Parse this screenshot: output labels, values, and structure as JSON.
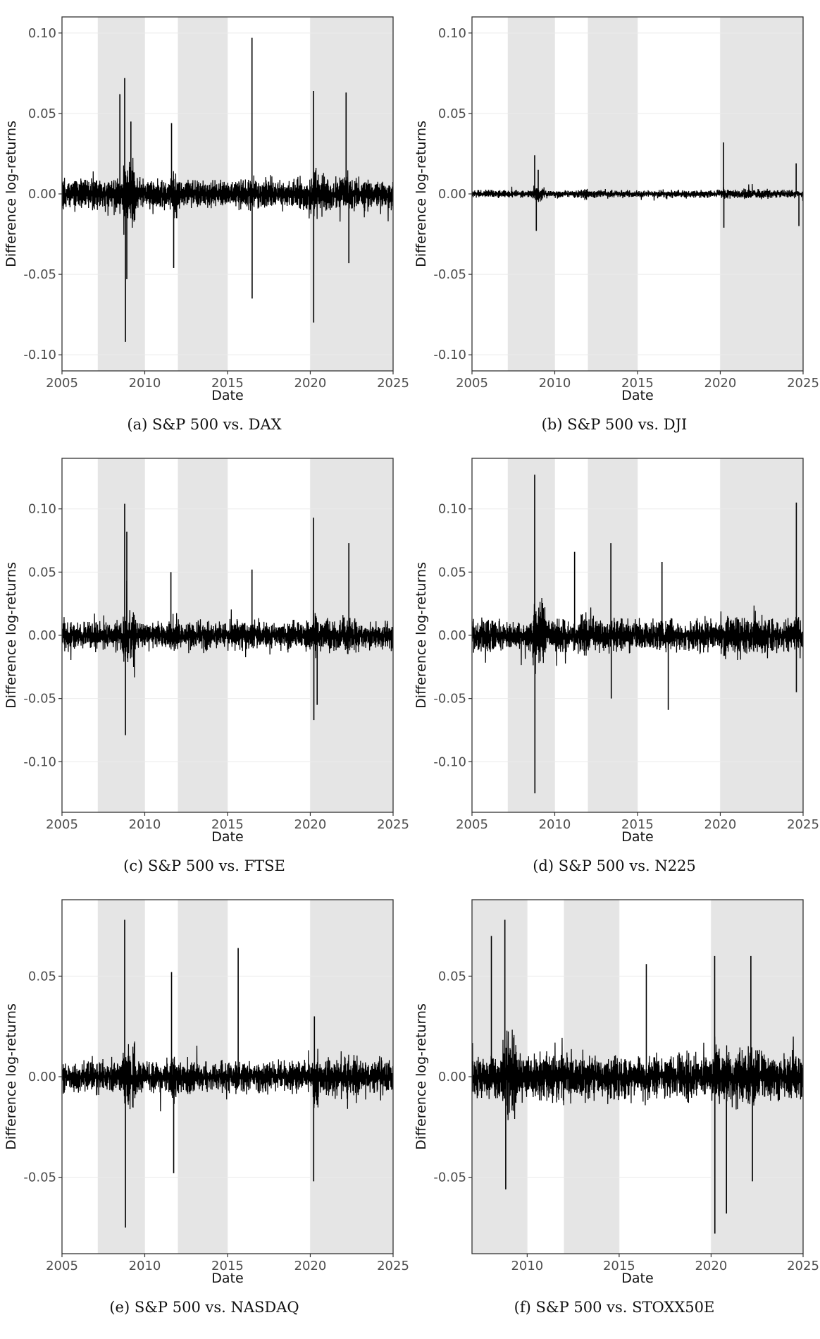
{
  "chart_data": [
    {
      "type": "line",
      "caption": "(a) S&P 500 vs. DAX",
      "xlabel": "Date",
      "ylabel": "Difference log-returns",
      "xlim": [
        "2005-01-01",
        "2025-01-01"
      ],
      "ylim": [
        -0.11,
        0.11
      ],
      "xticks": [
        "2005",
        "2010",
        "2015",
        "2020",
        "2025"
      ],
      "yticks": [
        -0.1,
        -0.05,
        0.0,
        0.05,
        0.1
      ],
      "ytick_labels": [
        "-0.10",
        "-0.05",
        "0.00",
        "0.05",
        "0.10"
      ],
      "grid": true,
      "shaded_periods": [
        [
          "2007-03-01",
          "2010-01-01"
        ],
        [
          "2012-01-01",
          "2015-01-01"
        ],
        [
          "2020-01-01",
          "2025-01-01"
        ]
      ],
      "series_extent": [
        "2005-01-01",
        "2025-01-01"
      ],
      "baseline_amplitude": 0.012,
      "spikes": [
        {
          "date": "2008-07-01",
          "value": 0.062
        },
        {
          "date": "2008-10-15",
          "value": 0.072
        },
        {
          "date": "2008-11-01",
          "value": -0.092
        },
        {
          "date": "2008-12-01",
          "value": -0.053
        },
        {
          "date": "2009-03-01",
          "value": 0.045
        },
        {
          "date": "2011-08-15",
          "value": 0.044
        },
        {
          "date": "2011-10-01",
          "value": -0.046
        },
        {
          "date": "2016-06-24",
          "value": 0.097
        },
        {
          "date": "2016-06-27",
          "value": -0.065
        },
        {
          "date": "2020-03-12",
          "value": 0.064
        },
        {
          "date": "2020-03-16",
          "value": -0.08
        },
        {
          "date": "2022-03-01",
          "value": 0.063
        },
        {
          "date": "2022-05-01",
          "value": -0.043
        }
      ]
    },
    {
      "type": "line",
      "caption": "(b) S&P 500 vs. DJI",
      "xlabel": "Date",
      "ylabel": "Difference log-returns",
      "xlim": [
        "2005-01-01",
        "2025-01-01"
      ],
      "ylim": [
        -0.11,
        0.11
      ],
      "xticks": [
        "2005",
        "2010",
        "2015",
        "2020",
        "2025"
      ],
      "yticks": [
        -0.1,
        -0.05,
        0.0,
        0.05,
        0.1
      ],
      "ytick_labels": [
        "-0.10",
        "-0.05",
        "0.00",
        "0.05",
        "0.10"
      ],
      "grid": true,
      "shaded_periods": [
        [
          "2007-03-01",
          "2010-01-01"
        ],
        [
          "2012-01-01",
          "2015-01-01"
        ],
        [
          "2020-01-01",
          "2025-01-01"
        ]
      ],
      "series_extent": [
        "2005-01-01",
        "2025-01-01"
      ],
      "baseline_amplitude": 0.003,
      "spikes": [
        {
          "date": "2008-10-15",
          "value": 0.024
        },
        {
          "date": "2008-11-20",
          "value": -0.023
        },
        {
          "date": "2009-01-01",
          "value": 0.015
        },
        {
          "date": "2020-03-12",
          "value": 0.032
        },
        {
          "date": "2020-03-20",
          "value": -0.021
        },
        {
          "date": "2024-08-01",
          "value": 0.019
        },
        {
          "date": "2024-10-01",
          "value": -0.02
        }
      ]
    },
    {
      "type": "line",
      "caption": "(c) S&P 500 vs. FTSE",
      "xlabel": "Date",
      "ylabel": "Difference log-returns",
      "xlim": [
        "2005-01-01",
        "2025-01-01"
      ],
      "ylim": [
        -0.14,
        0.14
      ],
      "xticks": [
        "2005",
        "2010",
        "2015",
        "2020",
        "2025"
      ],
      "yticks": [
        -0.1,
        -0.05,
        0.0,
        0.05,
        0.1
      ],
      "ytick_labels": [
        "-0.10",
        "-0.05",
        "0.00",
        "0.05",
        "0.10"
      ],
      "grid": true,
      "shaded_periods": [
        [
          "2007-03-01",
          "2010-01-01"
        ],
        [
          "2012-01-01",
          "2015-01-01"
        ],
        [
          "2020-01-01",
          "2025-01-01"
        ]
      ],
      "series_extent": [
        "2005-01-01",
        "2025-01-01"
      ],
      "baseline_amplitude": 0.014,
      "spikes": [
        {
          "date": "2008-10-15",
          "value": 0.104
        },
        {
          "date": "2008-11-01",
          "value": -0.079
        },
        {
          "date": "2008-12-01",
          "value": 0.082
        },
        {
          "date": "2011-08-01",
          "value": 0.05
        },
        {
          "date": "2016-06-24",
          "value": 0.052
        },
        {
          "date": "2020-03-12",
          "value": 0.093
        },
        {
          "date": "2020-03-20",
          "value": -0.067
        },
        {
          "date": "2020-06-01",
          "value": -0.055
        },
        {
          "date": "2022-05-01",
          "value": 0.073
        }
      ]
    },
    {
      "type": "line",
      "caption": "(d) S&P 500 vs. N225",
      "xlabel": "Date",
      "ylabel": "Difference log-returns",
      "xlim": [
        "2005-01-01",
        "2025-01-01"
      ],
      "ylim": [
        -0.14,
        0.14
      ],
      "xticks": [
        "2005",
        "2010",
        "2015",
        "2020",
        "2025"
      ],
      "yticks": [
        -0.1,
        -0.05,
        0.0,
        0.05,
        0.1
      ],
      "ytick_labels": [
        "-0.10",
        "-0.05",
        "0.00",
        "0.05",
        "0.10"
      ],
      "grid": true,
      "shaded_periods": [
        [
          "2007-03-01",
          "2010-01-01"
        ],
        [
          "2012-01-01",
          "2015-01-01"
        ],
        [
          "2020-01-01",
          "2025-01-01"
        ]
      ],
      "series_extent": [
        "2005-01-01",
        "2025-01-01"
      ],
      "baseline_amplitude": 0.016,
      "spikes": [
        {
          "date": "2008-10-15",
          "value": 0.127
        },
        {
          "date": "2008-10-20",
          "value": -0.125
        },
        {
          "date": "2011-03-15",
          "value": 0.066
        },
        {
          "date": "2013-05-23",
          "value": 0.073
        },
        {
          "date": "2013-06-01",
          "value": -0.05
        },
        {
          "date": "2016-06-24",
          "value": 0.058
        },
        {
          "date": "2016-11-09",
          "value": -0.059
        },
        {
          "date": "2024-08-05",
          "value": 0.105
        },
        {
          "date": "2024-08-06",
          "value": -0.045
        }
      ]
    },
    {
      "type": "line",
      "caption": "(e) S&P 500 vs. NASDAQ",
      "xlabel": "Date",
      "ylabel": "Difference log-returns",
      "xlim": [
        "2005-01-01",
        "2025-01-01"
      ],
      "ylim": [
        -0.088,
        0.088
      ],
      "xticks": [
        "2005",
        "2010",
        "2015",
        "2020",
        "2025"
      ],
      "yticks": [
        -0.05,
        0.0,
        0.05
      ],
      "ytick_labels": [
        "-0.05",
        "0.00",
        "0.05"
      ],
      "grid": true,
      "shaded_periods": [
        [
          "2007-03-01",
          "2010-01-01"
        ],
        [
          "2012-01-01",
          "2015-01-01"
        ],
        [
          "2020-01-01",
          "2025-01-01"
        ]
      ],
      "series_extent": [
        "2005-01-01",
        "2025-01-01"
      ],
      "baseline_amplitude": 0.01,
      "spikes": [
        {
          "date": "2008-10-15",
          "value": 0.078
        },
        {
          "date": "2008-11-01",
          "value": -0.075
        },
        {
          "date": "2011-08-15",
          "value": 0.052
        },
        {
          "date": "2011-10-01",
          "value": -0.048
        },
        {
          "date": "2015-08-24",
          "value": 0.064
        },
        {
          "date": "2020-03-16",
          "value": -0.052
        },
        {
          "date": "2020-04-01",
          "value": 0.03
        }
      ]
    },
    {
      "type": "line",
      "caption": "(f) S&P 500 vs. STOXX50E",
      "xlabel": "Date",
      "ylabel": "Difference log-returns",
      "xlim": [
        "2007-01-01",
        "2025-01-01"
      ],
      "ylim": [
        -0.088,
        0.088
      ],
      "xticks": [
        "2010",
        "2015",
        "2020",
        "2025"
      ],
      "yticks": [
        -0.05,
        0.0,
        0.05
      ],
      "ytick_labels": [
        "-0.05",
        "0.00",
        "0.05"
      ],
      "grid": true,
      "shaded_periods": [
        [
          "2007-01-01",
          "2010-01-01"
        ],
        [
          "2012-01-01",
          "2015-01-01"
        ],
        [
          "2020-01-01",
          "2025-01-01"
        ]
      ],
      "series_extent": [
        "2007-01-01",
        "2025-01-01"
      ],
      "baseline_amplitude": 0.014,
      "spikes": [
        {
          "date": "2008-01-21",
          "value": 0.07
        },
        {
          "date": "2008-10-15",
          "value": 0.078
        },
        {
          "date": "2008-11-01",
          "value": -0.056
        },
        {
          "date": "2016-06-24",
          "value": 0.056
        },
        {
          "date": "2020-03-12",
          "value": 0.06
        },
        {
          "date": "2020-03-16",
          "value": -0.078
        },
        {
          "date": "2020-11-01",
          "value": -0.068
        },
        {
          "date": "2022-03-01",
          "value": 0.06
        },
        {
          "date": "2022-04-01",
          "value": -0.052
        }
      ]
    }
  ]
}
